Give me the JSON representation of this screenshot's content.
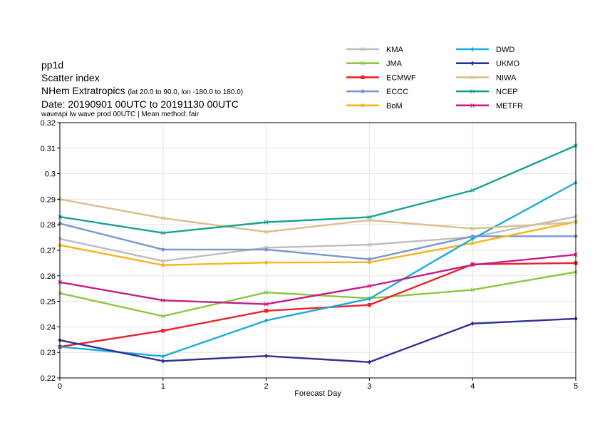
{
  "title": {
    "line1": "pp1d",
    "line2": "Scatter index",
    "line3_main": "NHem Extratropics",
    "line3_small": "(lat  20.0 to 90.0, lon  -180.0 to  180.0)",
    "line4": "Date: 20190901 00UTC to 20191130 00UTC",
    "line5": "waveapi lw wave prod 00UTC | Mean method: fair"
  },
  "chart_data": {
    "type": "line",
    "xlabel": "Forecast Day",
    "ylabel": "",
    "x": [
      0,
      1,
      2,
      3,
      4,
      5
    ],
    "xlim": [
      0,
      5
    ],
    "ylim": [
      0.22,
      0.32
    ],
    "yticks": [
      "0.22",
      "0.23",
      "0.24",
      "0.25",
      "0.26",
      "0.27",
      "0.28",
      "0.29",
      "0.3",
      "0.31",
      "0.32"
    ],
    "xticks": [
      "0",
      "1",
      "2",
      "3",
      "4",
      "5"
    ],
    "grid": true,
    "legend_position": "top-right",
    "series": [
      {
        "name": "KMA",
        "color": "#bdbdbd",
        "marker": "x",
        "values": [
          0.2745,
          0.2658,
          0.271,
          0.2722,
          0.2752,
          0.2832
        ]
      },
      {
        "name": "JMA",
        "color": "#8cc63f",
        "marker": "x",
        "values": [
          0.2532,
          0.2442,
          0.2535,
          0.2512,
          0.2545,
          0.2615
        ]
      },
      {
        "name": "ECMWF",
        "color": "#e8232a",
        "marker": "square",
        "values": [
          0.2322,
          0.2385,
          0.2463,
          0.2486,
          0.2645,
          0.265
        ]
      },
      {
        "name": "ECCC",
        "color": "#7b97cd",
        "marker": "circle",
        "values": [
          0.2805,
          0.2703,
          0.2703,
          0.2665,
          0.2755,
          0.2755
        ]
      },
      {
        "name": "BoM",
        "color": "#f9b31c",
        "marker": "circle",
        "values": [
          0.272,
          0.2642,
          0.2652,
          0.2653,
          0.2728,
          0.2812
        ]
      },
      {
        "name": "DWD",
        "color": "#1ea9e1",
        "marker": "diamond",
        "values": [
          0.2322,
          0.2285,
          0.2425,
          0.251,
          0.2745,
          0.2965
        ]
      },
      {
        "name": "UKMO",
        "color": "#2e3192",
        "marker": "diamond",
        "values": [
          0.2348,
          0.2266,
          0.2286,
          0.2262,
          0.2413,
          0.2432
        ]
      },
      {
        "name": "NIWA",
        "color": "#d9bf8c",
        "marker": "x",
        "values": [
          0.29,
          0.2826,
          0.2772,
          0.2818,
          0.2785,
          0.281
        ]
      },
      {
        "name": "NCEP",
        "color": "#17a38d",
        "marker": "x",
        "values": [
          0.2831,
          0.2768,
          0.281,
          0.283,
          0.2935,
          0.311
        ]
      },
      {
        "name": "METFR",
        "color": "#c71b8a",
        "marker": "x",
        "values": [
          0.2575,
          0.2504,
          0.2489,
          0.256,
          0.2643,
          0.2683
        ]
      }
    ]
  }
}
